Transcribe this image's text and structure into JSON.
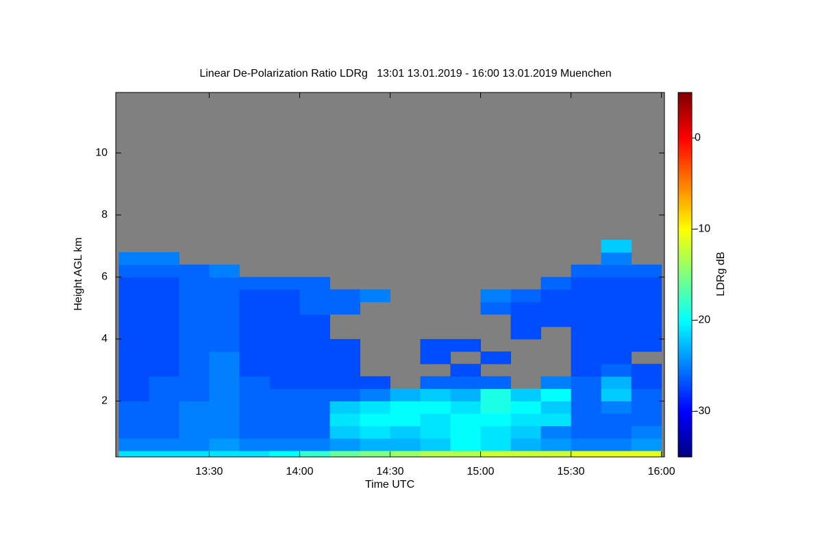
{
  "chart_data": {
    "type": "heatmap",
    "title": "Linear De-Polarization Ratio LDRg   13:01 13.01.2019 - 16:00 13.01.2019 Muenchen",
    "xlabel": "Time UTC",
    "ylabel": "Height AGL km",
    "xlim": [
      779,
      961
    ],
    "xticks": [
      {
        "value": 810,
        "label": "13:30"
      },
      {
        "value": 840,
        "label": "14:00"
      },
      {
        "value": 870,
        "label": "14:30"
      },
      {
        "value": 900,
        "label": "15:00"
      },
      {
        "value": 930,
        "label": "15:30"
      },
      {
        "value": 960,
        "label": "16:00"
      }
    ],
    "ylim": [
      0.2,
      11.95
    ],
    "yticks": [
      2,
      4,
      6,
      8,
      10
    ],
    "x_bins": [
      780,
      790,
      800,
      810,
      820,
      830,
      840,
      850,
      860,
      870,
      880,
      890,
      900,
      910,
      920,
      930,
      940,
      950,
      960
    ],
    "y_bins": [
      0.2,
      0.4,
      0.8,
      1.2,
      1.6,
      2.0,
      2.4,
      2.8,
      3.2,
      3.6,
      4.0,
      4.4,
      4.8,
      5.2,
      5.6,
      6.0,
      6.4,
      6.8,
      7.2
    ],
    "z": [
      [
        -21,
        -21,
        -21,
        -21,
        -21,
        -20,
        -18,
        -16,
        -15,
        -14,
        -13,
        -13,
        -12,
        -12,
        -12,
        -11,
        -11,
        -11
      ],
      [
        -25,
        -25,
        -25,
        -24,
        -25,
        -25,
        -25,
        -24,
        -23,
        -23,
        -22,
        -20,
        -21,
        -23,
        -24,
        -25,
        -25,
        -24
      ],
      [
        -26,
        -26,
        -25,
        -25,
        -26,
        -26,
        -26,
        -22,
        -21,
        -22,
        -21,
        -20,
        -21,
        -22,
        -25,
        -26,
        -26,
        -25
      ],
      [
        -26,
        -26,
        -25,
        -25,
        -26,
        -26,
        -26,
        -21,
        -20,
        -20,
        -21,
        -20,
        -20,
        -21,
        -21,
        -26,
        -26,
        -26
      ],
      [
        -26,
        -26,
        -25,
        -25,
        -26,
        -26,
        -26,
        -22,
        -21,
        -20,
        -20,
        -21,
        -19,
        -20,
        -22,
        -26,
        -25,
        -26
      ],
      [
        -27,
        -26,
        -26,
        -25,
        -26,
        -26,
        -26,
        -26,
        -25,
        -23,
        -22,
        -23,
        -19,
        -22,
        -20,
        -26,
        -22,
        -26
      ],
      [
        -27,
        -26,
        -26,
        -25,
        -26,
        -27,
        -27,
        -27,
        -27,
        null,
        -26,
        -26,
        -26,
        null,
        -25,
        -26,
        -23,
        -27
      ],
      [
        -27,
        -27,
        -26,
        -25,
        -27,
        -27,
        -27,
        -27,
        null,
        null,
        null,
        -27,
        null,
        null,
        null,
        -27,
        -26,
        -27
      ],
      [
        -27,
        -27,
        -26,
        -25,
        -27,
        -27,
        -27,
        -27,
        null,
        null,
        -27,
        null,
        -27,
        null,
        null,
        -27,
        -27,
        null
      ],
      [
        -27,
        -27,
        -26,
        -26,
        -27,
        -27,
        -27,
        -27,
        null,
        null,
        -27,
        -27,
        null,
        null,
        null,
        -27,
        -27,
        -27
      ],
      [
        -27,
        -27,
        -26,
        -26,
        -27,
        -27,
        -27,
        null,
        null,
        null,
        null,
        null,
        null,
        -27,
        null,
        -27,
        -27,
        -27
      ],
      [
        -27,
        -27,
        -26,
        -26,
        -27,
        -27,
        -27,
        null,
        null,
        null,
        null,
        null,
        null,
        -27,
        -27,
        -27,
        -27,
        -27
      ],
      [
        -27,
        -27,
        -26,
        -26,
        -27,
        -27,
        -26,
        -26,
        null,
        null,
        null,
        null,
        -26,
        -27,
        -27,
        -27,
        -27,
        -27
      ],
      [
        -27,
        -27,
        -26,
        -26,
        -27,
        -27,
        -26,
        -26,
        -25,
        null,
        null,
        null,
        -25,
        -26,
        -27,
        -27,
        -27,
        -27
      ],
      [
        -27,
        -27,
        -26,
        -26,
        -26,
        -26,
        -26,
        null,
        null,
        null,
        null,
        null,
        null,
        null,
        -26,
        -27,
        -27,
        -27
      ],
      [
        -26,
        -26,
        -26,
        -25,
        null,
        null,
        null,
        null,
        null,
        null,
        null,
        null,
        null,
        null,
        null,
        -26,
        -26,
        -26
      ],
      [
        -25,
        -25,
        null,
        null,
        null,
        null,
        null,
        null,
        null,
        null,
        null,
        null,
        null,
        null,
        null,
        null,
        -25,
        null
      ],
      [
        null,
        null,
        null,
        null,
        null,
        null,
        null,
        null,
        null,
        null,
        null,
        null,
        null,
        null,
        null,
        null,
        -22,
        null
      ]
    ],
    "colormap": "jet",
    "no_data_color": "#808080",
    "clim": [
      -35,
      5
    ],
    "cticks": [
      0,
      -10,
      -20,
      -30
    ],
    "clabel": "LDRg dB"
  }
}
